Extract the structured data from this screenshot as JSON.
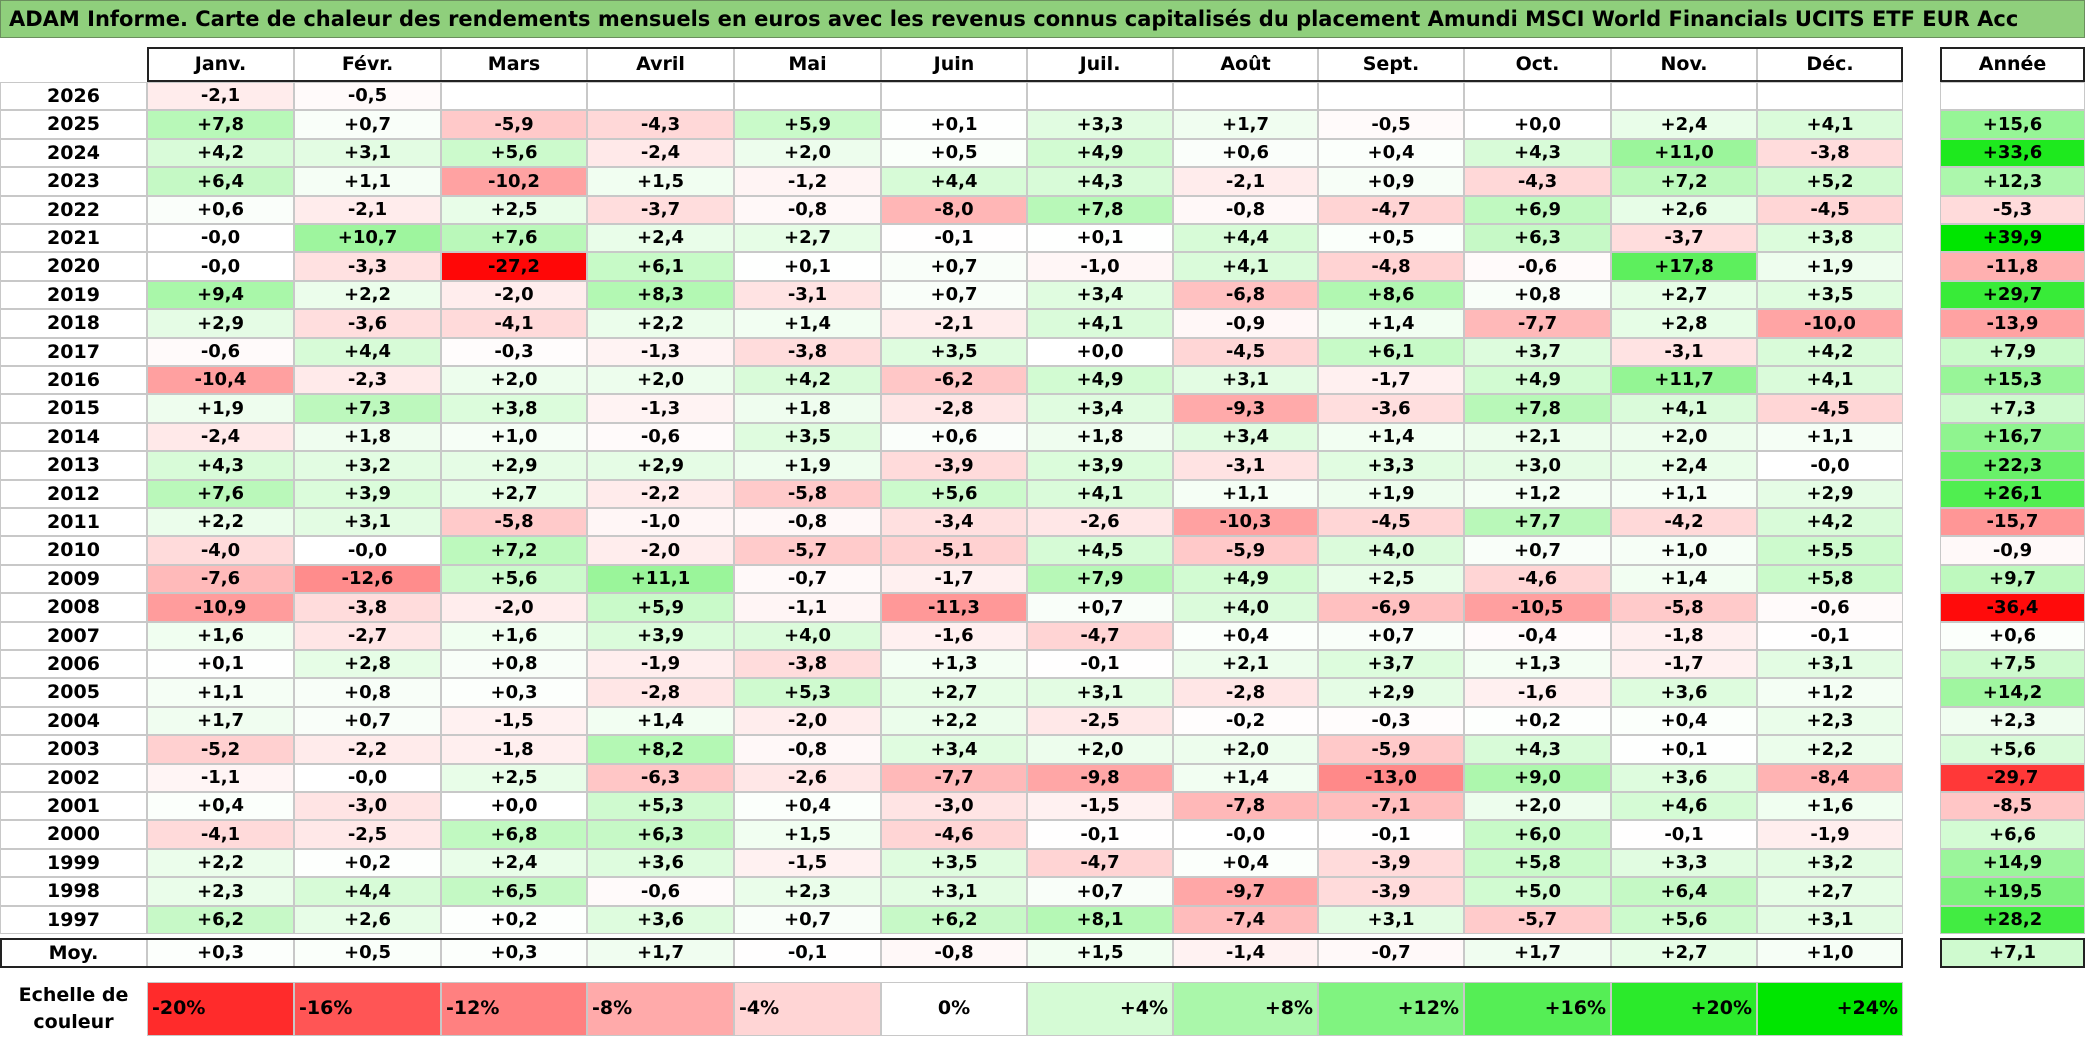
{
  "title": "ADAM Informe. Carte de chaleur des rendements mensuels en euros avec les revenus connus capitalisés du placement Amundi MSCI World Financials UCITS ETF EUR Acc",
  "chart_data": {
    "type": "heatmap",
    "months": [
      "Janv.",
      "Févr.",
      "Mars",
      "Avril",
      "Mai",
      "Juin",
      "Juil.",
      "Août",
      "Sept.",
      "Oct.",
      "Nov.",
      "Déc."
    ],
    "year_header": "Année",
    "rows": [
      {
        "year": "2026",
        "months": [
          "-2,1",
          "-0,5",
          "",
          "",
          "",
          "",
          "",
          "",
          "",
          "",
          "",
          ""
        ],
        "annual": ""
      },
      {
        "year": "2025",
        "months": [
          "+7,8",
          "+0,7",
          "-5,9",
          "-4,3",
          "+5,9",
          "+0,1",
          "+3,3",
          "+1,7",
          "-0,5",
          "+0,0",
          "+2,4",
          "+4,1"
        ],
        "annual": "+15,6"
      },
      {
        "year": "2024",
        "months": [
          "+4,2",
          "+3,1",
          "+5,6",
          "-2,4",
          "+2,0",
          "+0,5",
          "+4,9",
          "+0,6",
          "+0,4",
          "+4,3",
          "+11,0",
          "-3,8"
        ],
        "annual": "+33,6"
      },
      {
        "year": "2023",
        "months": [
          "+6,4",
          "+1,1",
          "-10,2",
          "+1,5",
          "-1,2",
          "+4,4",
          "+4,3",
          "-2,1",
          "+0,9",
          "-4,3",
          "+7,2",
          "+5,2"
        ],
        "annual": "+12,3"
      },
      {
        "year": "2022",
        "months": [
          "+0,6",
          "-2,1",
          "+2,5",
          "-3,7",
          "-0,8",
          "-8,0",
          "+7,8",
          "-0,8",
          "-4,7",
          "+6,9",
          "+2,6",
          "-4,5"
        ],
        "annual": "-5,3"
      },
      {
        "year": "2021",
        "months": [
          "-0,0",
          "+10,7",
          "+7,6",
          "+2,4",
          "+2,7",
          "-0,1",
          "+0,1",
          "+4,4",
          "+0,5",
          "+6,3",
          "-3,7",
          "+3,8"
        ],
        "annual": "+39,9"
      },
      {
        "year": "2020",
        "months": [
          "-0,0",
          "-3,3",
          "-27,2",
          "+6,1",
          "+0,1",
          "+0,7",
          "-1,0",
          "+4,1",
          "-4,8",
          "-0,6",
          "+17,8",
          "+1,9"
        ],
        "annual": "-11,8"
      },
      {
        "year": "2019",
        "months": [
          "+9,4",
          "+2,2",
          "-2,0",
          "+8,3",
          "-3,1",
          "+0,7",
          "+3,4",
          "-6,8",
          "+8,6",
          "+0,8",
          "+2,7",
          "+3,5"
        ],
        "annual": "+29,7"
      },
      {
        "year": "2018",
        "months": [
          "+2,9",
          "-3,6",
          "-4,1",
          "+2,2",
          "+1,4",
          "-2,1",
          "+4,1",
          "-0,9",
          "+1,4",
          "-7,7",
          "+2,8",
          "-10,0"
        ],
        "annual": "-13,9"
      },
      {
        "year": "2017",
        "months": [
          "-0,6",
          "+4,4",
          "-0,3",
          "-1,3",
          "-3,8",
          "+3,5",
          "+0,0",
          "-4,5",
          "+6,1",
          "+3,7",
          "-3,1",
          "+4,2"
        ],
        "annual": "+7,9"
      },
      {
        "year": "2016",
        "months": [
          "-10,4",
          "-2,3",
          "+2,0",
          "+2,0",
          "+4,2",
          "-6,2",
          "+4,9",
          "+3,1",
          "-1,7",
          "+4,9",
          "+11,7",
          "+4,1"
        ],
        "annual": "+15,3"
      },
      {
        "year": "2015",
        "months": [
          "+1,9",
          "+7,3",
          "+3,8",
          "-1,3",
          "+1,8",
          "-2,8",
          "+3,4",
          "-9,3",
          "-3,6",
          "+7,8",
          "+4,1",
          "-4,5"
        ],
        "annual": "+7,3"
      },
      {
        "year": "2014",
        "months": [
          "-2,4",
          "+1,8",
          "+1,0",
          "-0,6",
          "+3,5",
          "+0,6",
          "+1,8",
          "+3,4",
          "+1,4",
          "+2,1",
          "+2,0",
          "+1,1"
        ],
        "annual": "+16,7"
      },
      {
        "year": "2013",
        "months": [
          "+4,3",
          "+3,2",
          "+2,9",
          "+2,9",
          "+1,9",
          "-3,9",
          "+3,9",
          "-3,1",
          "+3,3",
          "+3,0",
          "+2,4",
          "-0,0"
        ],
        "annual": "+22,3"
      },
      {
        "year": "2012",
        "months": [
          "+7,6",
          "+3,9",
          "+2,7",
          "-2,2",
          "-5,8",
          "+5,6",
          "+4,1",
          "+1,1",
          "+1,9",
          "+1,2",
          "+1,1",
          "+2,9"
        ],
        "annual": "+26,1"
      },
      {
        "year": "2011",
        "months": [
          "+2,2",
          "+3,1",
          "-5,8",
          "-1,0",
          "-0,8",
          "-3,4",
          "-2,6",
          "-10,3",
          "-4,5",
          "+7,7",
          "-4,2",
          "+4,2"
        ],
        "annual": "-15,7"
      },
      {
        "year": "2010",
        "months": [
          "-4,0",
          "-0,0",
          "+7,2",
          "-2,0",
          "-5,7",
          "-5,1",
          "+4,5",
          "-5,9",
          "+4,0",
          "+0,7",
          "+1,0",
          "+5,5"
        ],
        "annual": "-0,9"
      },
      {
        "year": "2009",
        "months": [
          "-7,6",
          "-12,6",
          "+5,6",
          "+11,1",
          "-0,7",
          "-1,7",
          "+7,9",
          "+4,9",
          "+2,5",
          "-4,6",
          "+1,4",
          "+5,8"
        ],
        "annual": "+9,7"
      },
      {
        "year": "2008",
        "months": [
          "-10,9",
          "-3,8",
          "-2,0",
          "+5,9",
          "-1,1",
          "-11,3",
          "+0,7",
          "+4,0",
          "-6,9",
          "-10,5",
          "-5,8",
          "-0,6"
        ],
        "annual": "-36,4"
      },
      {
        "year": "2007",
        "months": [
          "+1,6",
          "-2,7",
          "+1,6",
          "+3,9",
          "+4,0",
          "-1,6",
          "-4,7",
          "+0,4",
          "+0,7",
          "-0,4",
          "-1,8",
          "-0,1"
        ],
        "annual": "+0,6"
      },
      {
        "year": "2006",
        "months": [
          "+0,1",
          "+2,8",
          "+0,8",
          "-1,9",
          "-3,8",
          "+1,3",
          "-0,1",
          "+2,1",
          "+3,7",
          "+1,3",
          "-1,7",
          "+3,1"
        ],
        "annual": "+7,5"
      },
      {
        "year": "2005",
        "months": [
          "+1,1",
          "+0,8",
          "+0,3",
          "-2,8",
          "+5,3",
          "+2,7",
          "+3,1",
          "-2,8",
          "+2,9",
          "-1,6",
          "+3,6",
          "+1,2"
        ],
        "annual": "+14,2"
      },
      {
        "year": "2004",
        "months": [
          "+1,7",
          "+0,7",
          "-1,5",
          "+1,4",
          "-2,0",
          "+2,2",
          "-2,5",
          "-0,2",
          "-0,3",
          "+0,2",
          "+0,4",
          "+2,3"
        ],
        "annual": "+2,3"
      },
      {
        "year": "2003",
        "months": [
          "-5,2",
          "-2,2",
          "-1,8",
          "+8,2",
          "-0,8",
          "+3,4",
          "+2,0",
          "+2,0",
          "-5,9",
          "+4,3",
          "+0,1",
          "+2,2"
        ],
        "annual": "+5,6"
      },
      {
        "year": "2002",
        "months": [
          "-1,1",
          "-0,0",
          "+2,5",
          "-6,3",
          "-2,6",
          "-7,7",
          "-9,8",
          "+1,4",
          "-13,0",
          "+9,0",
          "+3,6",
          "-8,4"
        ],
        "annual": "-29,7"
      },
      {
        "year": "2001",
        "months": [
          "+0,4",
          "-3,0",
          "+0,0",
          "+5,3",
          "+0,4",
          "-3,0",
          "-1,5",
          "-7,8",
          "-7,1",
          "+2,0",
          "+4,6",
          "+1,6"
        ],
        "annual": "-8,5"
      },
      {
        "year": "2000",
        "months": [
          "-4,1",
          "-2,5",
          "+6,8",
          "+6,3",
          "+1,5",
          "-4,6",
          "-0,1",
          "-0,0",
          "-0,1",
          "+6,0",
          "-0,1",
          "-1,9"
        ],
        "annual": "+6,6"
      },
      {
        "year": "1999",
        "months": [
          "+2,2",
          "+0,2",
          "+2,4",
          "+3,6",
          "-1,5",
          "+3,5",
          "-4,7",
          "+0,4",
          "-3,9",
          "+5,8",
          "+3,3",
          "+3,2"
        ],
        "annual": "+14,9"
      },
      {
        "year": "1998",
        "months": [
          "+2,3",
          "+4,4",
          "+6,5",
          "-0,6",
          "+2,3",
          "+3,1",
          "+0,7",
          "-9,7",
          "-3,9",
          "+5,0",
          "+6,4",
          "+2,7"
        ],
        "annual": "+19,5"
      },
      {
        "year": "1997",
        "months": [
          "+6,2",
          "+2,6",
          "+0,2",
          "+3,6",
          "+0,7",
          "+6,2",
          "+8,1",
          "-7,4",
          "+3,1",
          "-5,7",
          "+5,6",
          "+3,1"
        ],
        "annual": "+28,2"
      }
    ],
    "average": {
      "label": "Moy.",
      "months": [
        "+0,3",
        "+0,5",
        "+0,3",
        "+1,7",
        "-0,1",
        "-0,8",
        "+1,5",
        "-1,4",
        "-0,7",
        "+1,7",
        "+2,7",
        "+1,0"
      ],
      "annual": "+7,1"
    },
    "legend": {
      "label": "Echelle de couleur",
      "steps": [
        "-20%",
        "-16%",
        "-12%",
        "-8%",
        "-4%",
        "0%",
        "+4%",
        "+8%",
        "+12%",
        "+16%",
        "+20%",
        "+24%"
      ],
      "step_values": [
        -20,
        -16,
        -12,
        -8,
        -4,
        0,
        4,
        8,
        12,
        16,
        20,
        24
      ]
    },
    "colors": {
      "negative_max": "#ff0000",
      "neutral": "#ffffff",
      "positive_max": "#00e600"
    }
  }
}
